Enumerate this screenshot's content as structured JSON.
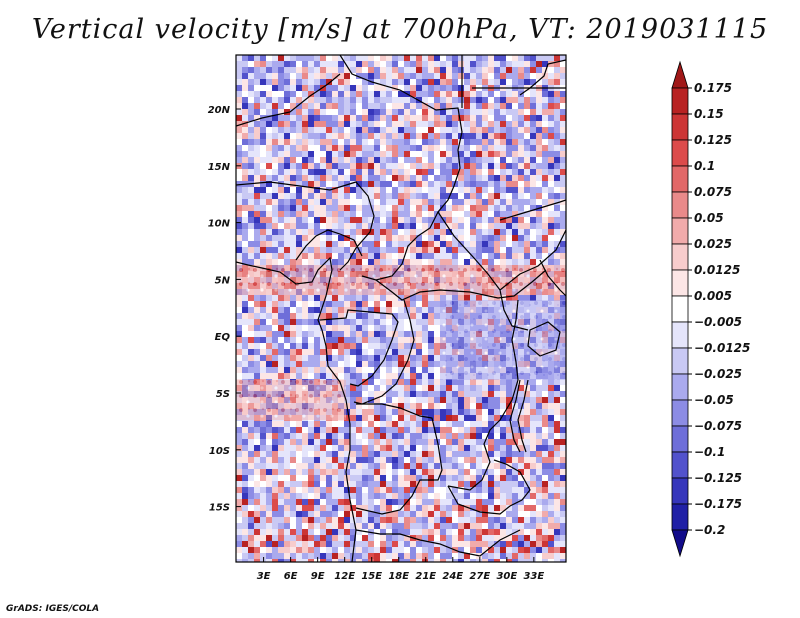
{
  "title": "Vertical velocity [m/s] at 700hPa, VT: 2019031115",
  "footer": "GrADS: IGES/COLA",
  "map": {
    "variable": "Vertical velocity",
    "units": "m/s",
    "level": "700hPa",
    "valid_time": "2019031115",
    "lat_labels": [
      "20N",
      "15N",
      "10N",
      "5N",
      "EQ",
      "5S",
      "10S",
      "15S"
    ],
    "lon_labels": [
      "3E",
      "6E",
      "9E",
      "12E",
      "15E",
      "18E",
      "21E",
      "24E",
      "27E",
      "30E",
      "33E"
    ]
  },
  "colorbar": {
    "labels": [
      "0.175",
      "0.15",
      "0.125",
      "0.1",
      "0.075",
      "0.05",
      "0.025",
      "0.0125",
      "0.005",
      "−0.005",
      "−0.0125",
      "−0.025",
      "−0.05",
      "−0.075",
      "−0.1",
      "−0.125",
      "−0.175",
      "−0.2"
    ],
    "colors": [
      "#a01818",
      "#b82222",
      "#cc3535",
      "#dc4b4b",
      "#e26868",
      "#e98a8a",
      "#f1abab",
      "#f7cccc",
      "#fce6e6",
      "#ffffff",
      "#e5e5fb",
      "#c9c9f4",
      "#aaaaee",
      "#8c8ce5",
      "#6e6ed9",
      "#5252cc",
      "#3636bb",
      "#2020a6",
      "#120c8a"
    ]
  }
}
